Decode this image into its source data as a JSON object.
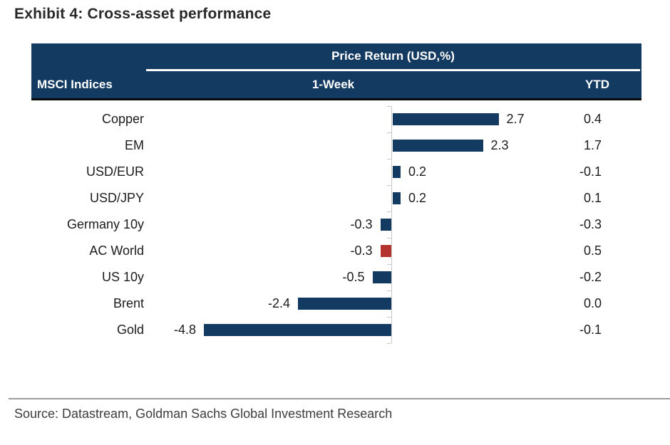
{
  "title": "Exhibit 4: Cross-asset performance",
  "table": {
    "corner_label": "MSCI Indices",
    "group_header": "Price Return (USD,%)",
    "col_week": "1-Week",
    "col_ytd": "YTD"
  },
  "source": "Source: Datastream, Goldman Sachs Global Investment Research",
  "colors": {
    "header_bg": "#133A60",
    "bar": "#133A60",
    "highlight": "#B5332F",
    "axis": "#C9C9C9"
  },
  "chart_data": {
    "type": "bar",
    "orientation": "horizontal",
    "title": "Exhibit 4: Cross-asset performance",
    "xlabel": "Price Return (USD,%)",
    "categories": [
      "Copper",
      "EM",
      "USD/EUR",
      "USD/JPY",
      "Germany 10y",
      "AC World",
      "US 10y",
      "Brent",
      "Gold"
    ],
    "series": [
      {
        "name": "1-Week",
        "values": [
          2.7,
          2.3,
          0.2,
          0.2,
          -0.3,
          -0.3,
          -0.5,
          -2.4,
          -4.8
        ],
        "labels": [
          "2.7",
          "2.3",
          "0.2",
          "0.2",
          "-0.3",
          "-0.3",
          "-0.5",
          "-2.4",
          "-4.8"
        ]
      },
      {
        "name": "YTD",
        "values": [
          0.4,
          1.7,
          -0.1,
          0.1,
          -0.3,
          0.5,
          -0.2,
          0.0,
          -0.1
        ],
        "labels": [
          "0.4",
          "1.7",
          "-0.1",
          "0.1",
          "-0.3",
          "0.5",
          "-0.2",
          "0.0",
          "-0.1"
        ]
      }
    ],
    "highlight_index": 5,
    "highlight_category": "AC World",
    "xlim": [
      -5.5,
      3.5
    ],
    "grid": false,
    "legend": "none",
    "value_labels": true
  }
}
